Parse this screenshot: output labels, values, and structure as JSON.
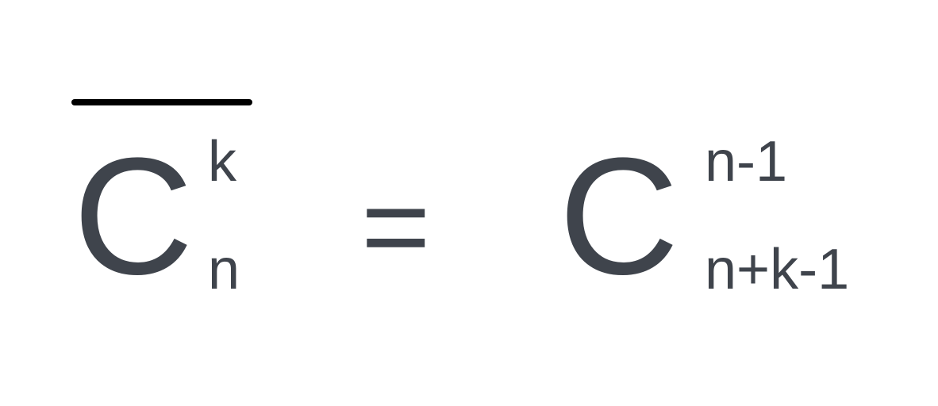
{
  "formula": {
    "left": {
      "symbol": "C",
      "superscript": "k",
      "subscript": "n"
    },
    "operator": "=",
    "right": {
      "symbol": "C",
      "superscript": "n-1",
      "subscript": "n+k-1"
    }
  },
  "colors": {
    "text": "#3f444c",
    "overline": "#000000",
    "background": "#ffffff"
  }
}
